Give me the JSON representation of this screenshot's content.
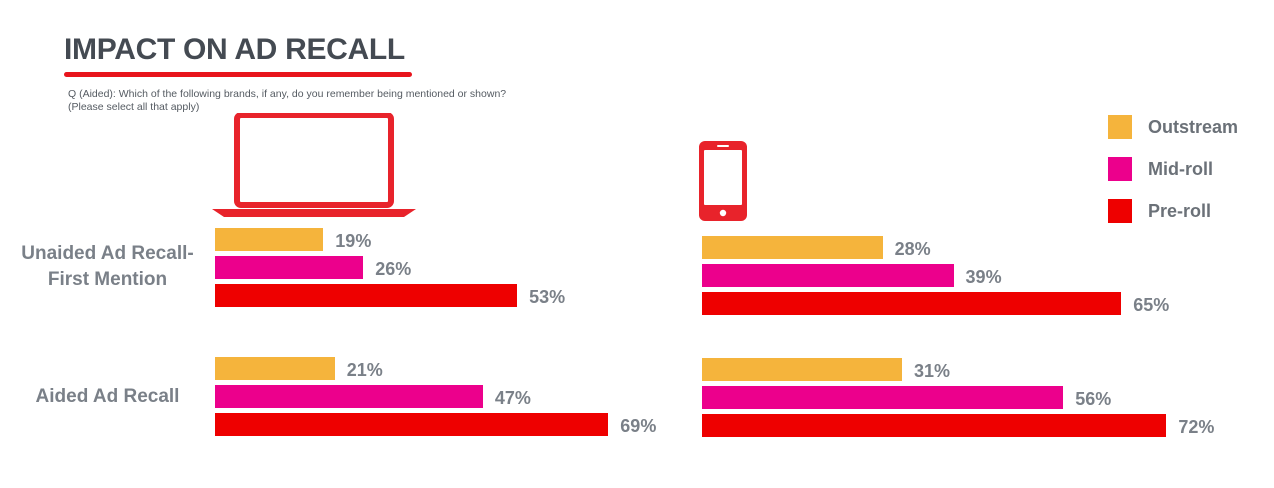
{
  "header": {
    "title": "IMPACT ON AD RECALL",
    "question_line1": "Q (Aided): Which of the following brands, if any, do you remember being mentioned or shown?",
    "question_line2": "(Please select all that apply)"
  },
  "colors": {
    "outstream": "#f5b43c",
    "mid_roll": "#ec008c",
    "pre_roll": "#ee0000",
    "accent": "#e8141c"
  },
  "icons": {
    "desktop": "laptop-icon",
    "mobile": "smartphone-icon"
  },
  "chart_data": {
    "type": "bar",
    "orientation": "horizontal",
    "title": "IMPACT ON AD RECALL",
    "categories": [
      "Unaided Ad Recall- First Mention",
      "Aided Ad Recall"
    ],
    "category_labels": [
      [
        "Unaided Ad Recall-",
        "First Mention"
      ],
      [
        "Aided Ad Recall"
      ]
    ],
    "legend": {
      "position": "top-right",
      "entries": [
        "Outstream",
        "Mid-roll",
        "Pre-roll"
      ]
    },
    "panels": [
      {
        "device_icon": "laptop-icon",
        "series": [
          {
            "name": "Outstream",
            "values": [
              19,
              21
            ],
            "labels": [
              "19%",
              "21%"
            ]
          },
          {
            "name": "Mid-roll",
            "values": [
              26,
              47
            ],
            "labels": [
              "26%",
              "47%"
            ]
          },
          {
            "name": "Pre-roll",
            "values": [
              53,
              69
            ],
            "labels": [
              "53%",
              "69%"
            ]
          }
        ]
      },
      {
        "device_icon": "smartphone-icon",
        "series": [
          {
            "name": "Outstream",
            "values": [
              28,
              31
            ],
            "labels": [
              "28%",
              "31%"
            ]
          },
          {
            "name": "Mid-roll",
            "values": [
              39,
              56
            ],
            "labels": [
              "39%",
              "56%"
            ]
          },
          {
            "name": "Pre-roll",
            "values": [
              65,
              72
            ],
            "labels": [
              "65%",
              "72%"
            ]
          }
        ]
      }
    ],
    "grid": false,
    "unit": "%"
  }
}
